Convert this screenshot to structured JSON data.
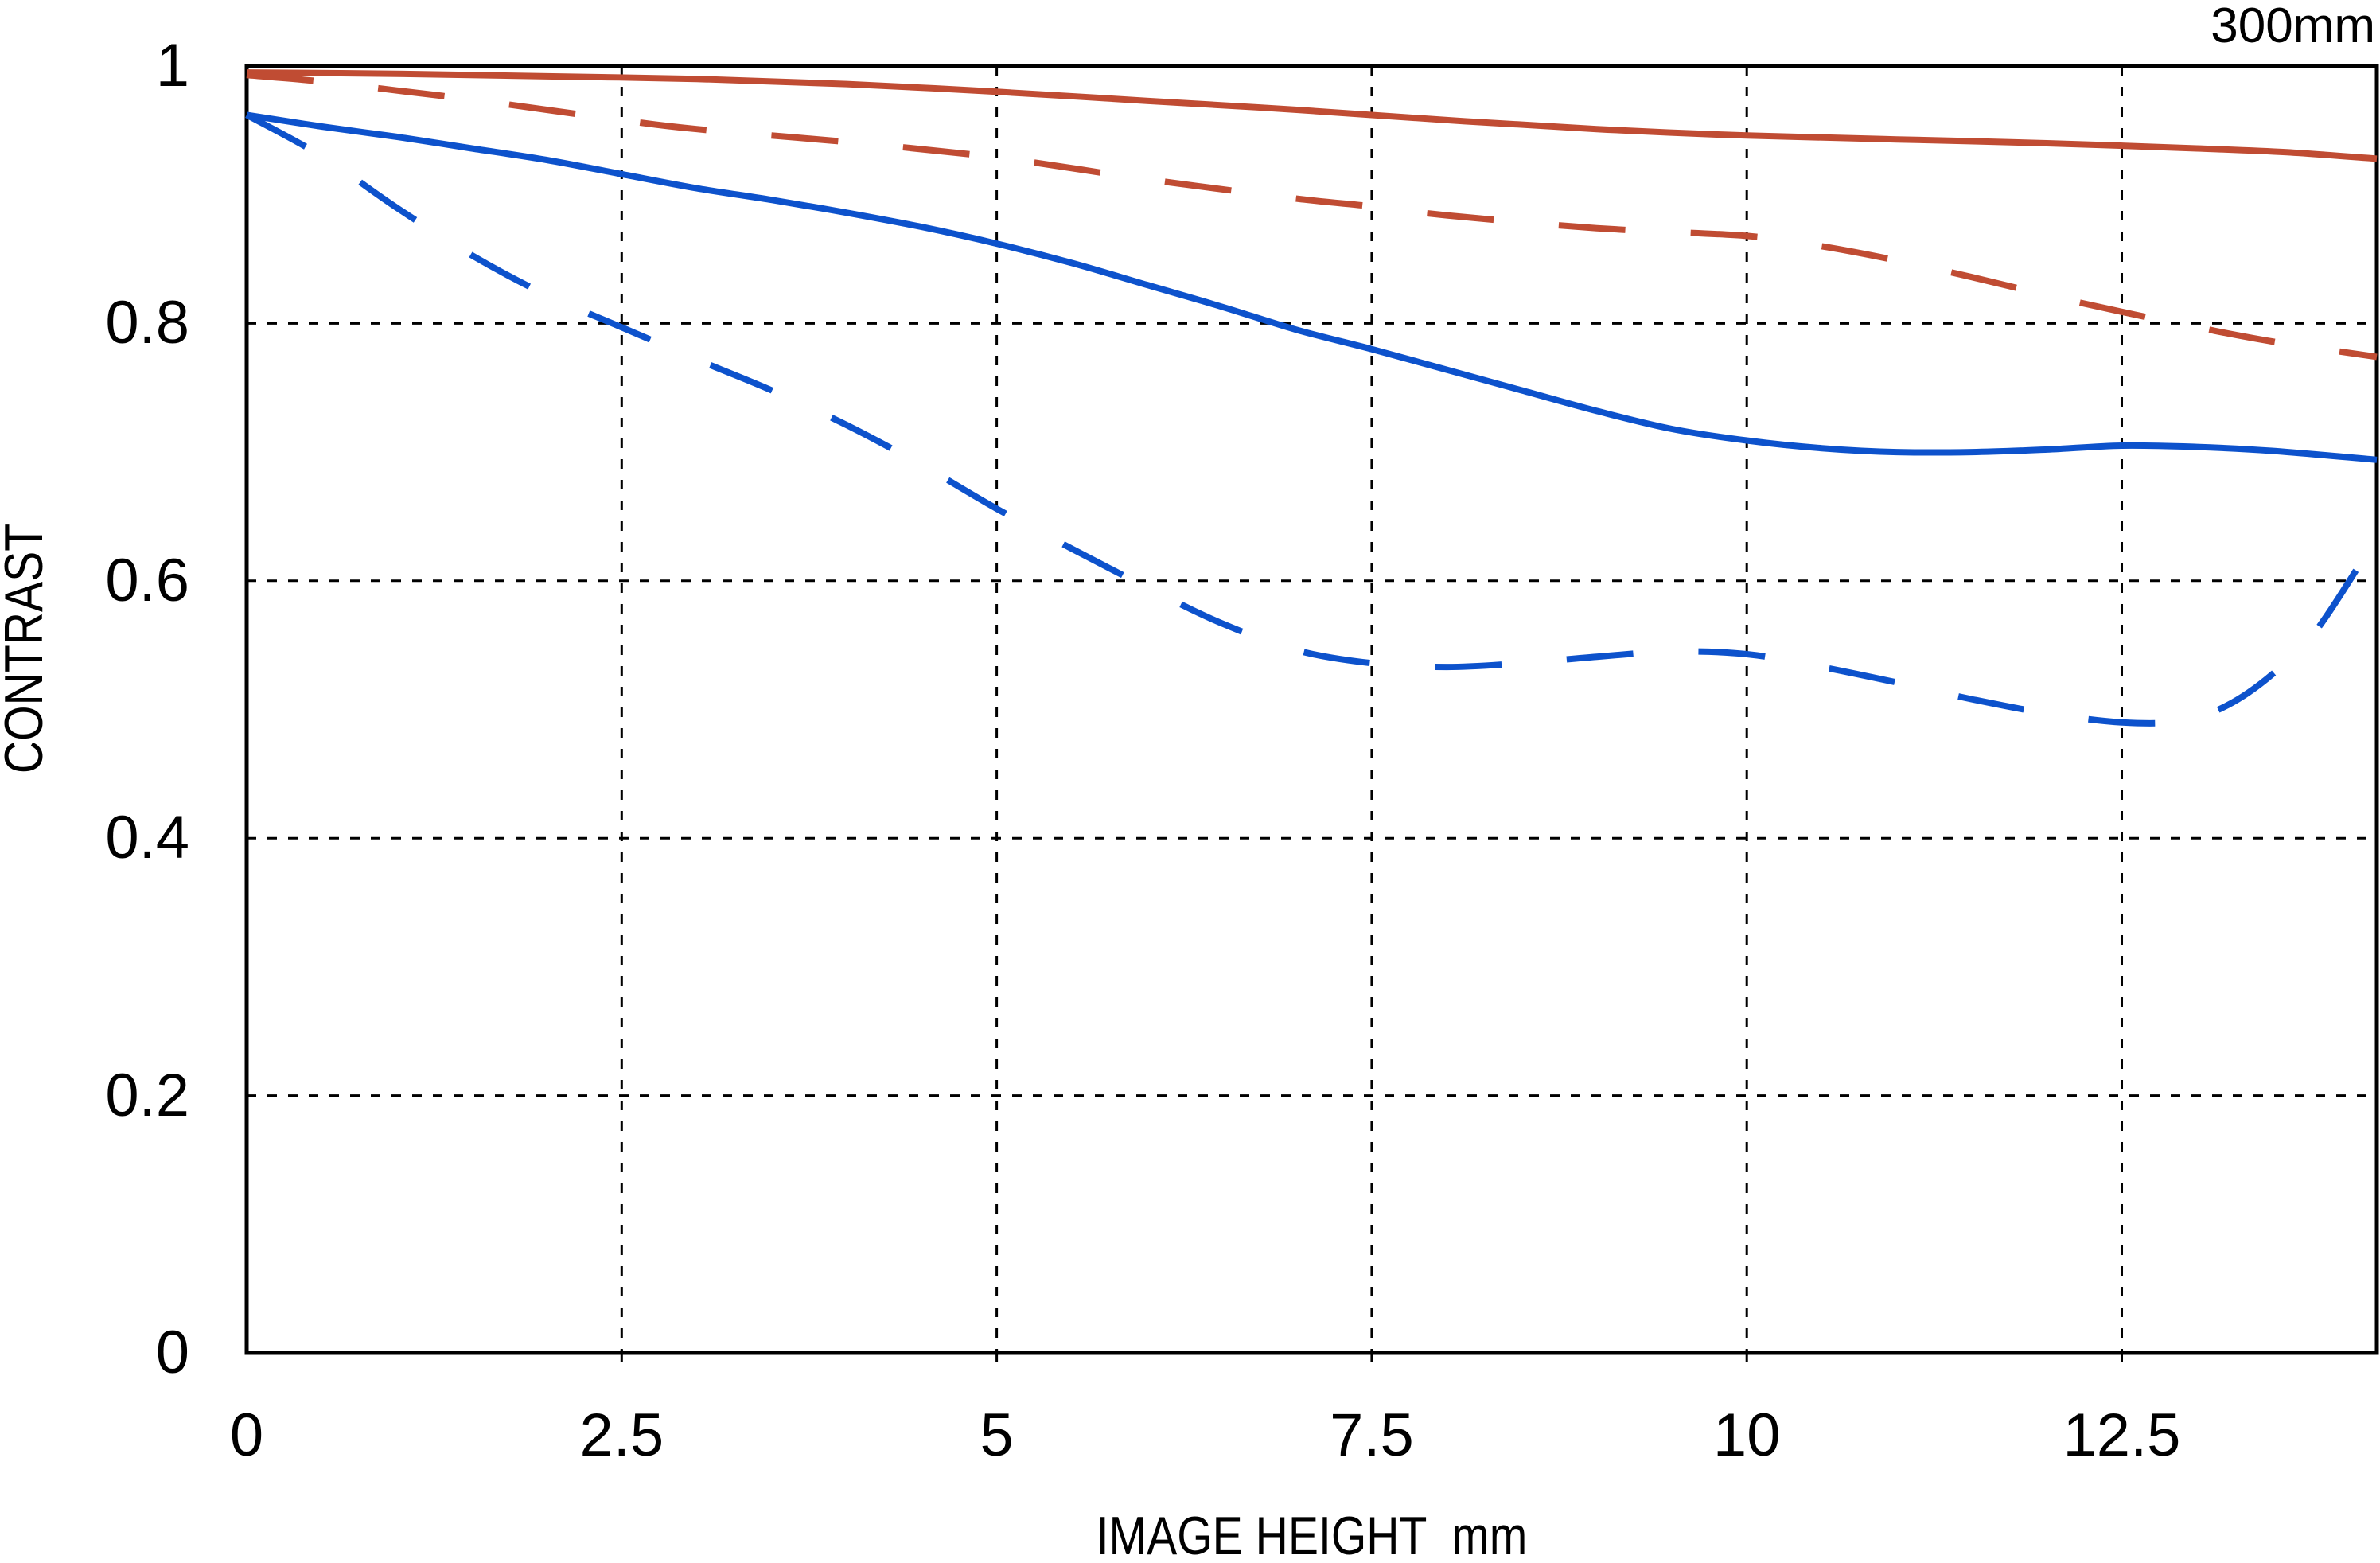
{
  "title": "300mm",
  "axes": {
    "x": {
      "label": "IMAGE HEIGHT  mm",
      "min": 0,
      "max": 14.2,
      "ticks": [
        {
          "value": 0,
          "label": "0"
        },
        {
          "value": 2.5,
          "label": "2.5"
        },
        {
          "value": 5,
          "label": "5"
        },
        {
          "value": 7.5,
          "label": "7.5"
        },
        {
          "value": 10,
          "label": "10"
        },
        {
          "value": 12.5,
          "label": "12.5"
        }
      ]
    },
    "y": {
      "label": "CONTRAST",
      "min": 0,
      "max": 1,
      "ticks": [
        {
          "value": 1,
          "label": "1"
        },
        {
          "value": 0.8,
          "label": "0.8"
        },
        {
          "value": 0.6,
          "label": "0.6"
        },
        {
          "value": 0.4,
          "label": "0.4"
        },
        {
          "value": 0.2,
          "label": "0.2"
        },
        {
          "value": 0,
          "label": "0"
        }
      ]
    }
  },
  "colors": {
    "red": "#c04c33",
    "blue": "#0d52cc",
    "axis": "#000000",
    "background": "#ffffff"
  },
  "chart_data": {
    "type": "line",
    "title": "300mm",
    "xlabel": "IMAGE HEIGHT  mm",
    "ylabel": "CONTRAST",
    "xlim": [
      0,
      14.2
    ],
    "ylim": [
      0,
      1
    ],
    "x_gridlines": [
      2.5,
      5,
      7.5,
      10,
      12.5
    ],
    "y_gridlines": [
      0.2,
      0.4,
      0.6,
      0.8
    ],
    "grid": "dashed",
    "legend": "none",
    "series": [
      {
        "id": "red-solid",
        "color": "#c04c33",
        "style": "solid",
        "points": [
          [
            0,
            0.995
          ],
          [
            1,
            0.994
          ],
          [
            2,
            0.992
          ],
          [
            3,
            0.99
          ],
          [
            4,
            0.986
          ],
          [
            5,
            0.98
          ],
          [
            6,
            0.973
          ],
          [
            7,
            0.966
          ],
          [
            8,
            0.958
          ],
          [
            9,
            0.951
          ],
          [
            10,
            0.946
          ],
          [
            11,
            0.943
          ],
          [
            12,
            0.94
          ],
          [
            13,
            0.936
          ],
          [
            13.6,
            0.933
          ],
          [
            14.2,
            0.928
          ]
        ]
      },
      {
        "id": "red-dashed",
        "color": "#c04c33",
        "style": "dashed",
        "points": [
          [
            0,
            0.993
          ],
          [
            0.5,
            0.988
          ],
          [
            1,
            0.981
          ],
          [
            1.5,
            0.974
          ],
          [
            2,
            0.966
          ],
          [
            2.5,
            0.958
          ],
          [
            3,
            0.951
          ],
          [
            4,
            0.941
          ],
          [
            5,
            0.929
          ],
          [
            6,
            0.912
          ],
          [
            7,
            0.897
          ],
          [
            7.5,
            0.891
          ],
          [
            8,
            0.884
          ],
          [
            9,
            0.874
          ],
          [
            10,
            0.868
          ],
          [
            10.5,
            0.86
          ],
          [
            11,
            0.849
          ],
          [
            11.5,
            0.836
          ],
          [
            12,
            0.822
          ],
          [
            12.5,
            0.809
          ],
          [
            13,
            0.797
          ],
          [
            13.5,
            0.786
          ],
          [
            14.2,
            0.774
          ]
        ]
      },
      {
        "id": "blue-solid",
        "color": "#0d52cc",
        "style": "solid",
        "points": [
          [
            0,
            0.962
          ],
          [
            0.5,
            0.953
          ],
          [
            1,
            0.945
          ],
          [
            1.5,
            0.936
          ],
          [
            2,
            0.927
          ],
          [
            2.5,
            0.916
          ],
          [
            3,
            0.905
          ],
          [
            3.5,
            0.896
          ],
          [
            4,
            0.886
          ],
          [
            4.5,
            0.875
          ],
          [
            5,
            0.862
          ],
          [
            5.5,
            0.847
          ],
          [
            6,
            0.83
          ],
          [
            6.5,
            0.813
          ],
          [
            7,
            0.795
          ],
          [
            7.5,
            0.78
          ],
          [
            8,
            0.764
          ],
          [
            8.5,
            0.748
          ],
          [
            9,
            0.732
          ],
          [
            9.5,
            0.718
          ],
          [
            10,
            0.709
          ],
          [
            10.5,
            0.703
          ],
          [
            11,
            0.7
          ],
          [
            11.5,
            0.7
          ],
          [
            12,
            0.702
          ],
          [
            12.5,
            0.705
          ],
          [
            13,
            0.704
          ],
          [
            13.5,
            0.701
          ],
          [
            14.2,
            0.694
          ]
        ]
      },
      {
        "id": "blue-dashed",
        "color": "#0d52cc",
        "style": "dashed",
        "points": [
          [
            0,
            0.962
          ],
          [
            0.5,
            0.93
          ],
          [
            1,
            0.89
          ],
          [
            1.5,
            0.853
          ],
          [
            2,
            0.822
          ],
          [
            2.5,
            0.797
          ],
          [
            3,
            0.772
          ],
          [
            3.5,
            0.748
          ],
          [
            4,
            0.721
          ],
          [
            4.5,
            0.69
          ],
          [
            5,
            0.656
          ],
          [
            5.5,
            0.625
          ],
          [
            6,
            0.595
          ],
          [
            6.5,
            0.567
          ],
          [
            7,
            0.546
          ],
          [
            7.5,
            0.536
          ],
          [
            8,
            0.533
          ],
          [
            8.5,
            0.536
          ],
          [
            9,
            0.541
          ],
          [
            9.5,
            0.545
          ],
          [
            10,
            0.543
          ],
          [
            10.5,
            0.533
          ],
          [
            11,
            0.521
          ],
          [
            11.5,
            0.508
          ],
          [
            12,
            0.497
          ],
          [
            12.5,
            0.49
          ],
          [
            12.9,
            0.491
          ],
          [
            13.2,
            0.503
          ],
          [
            13.5,
            0.527
          ],
          [
            13.8,
            0.562
          ],
          [
            14.2,
            0.634
          ]
        ]
      }
    ]
  }
}
